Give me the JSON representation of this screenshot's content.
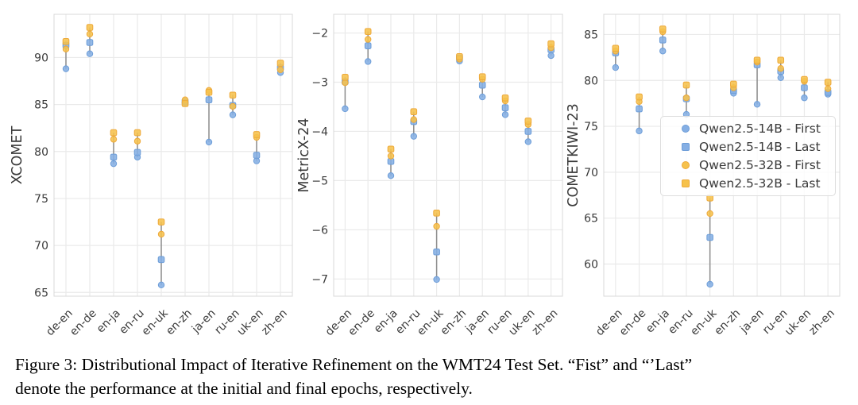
{
  "figure": {
    "caption_line1": "Figure 3: Distributional Impact of Iterative Refinement on the WMT24 Test Set. “Fist” and “’Last”",
    "caption_line2": "denote the performance at the initial and final epochs, respectively."
  },
  "legend": {
    "items": [
      {
        "label": "Qwen2.5-14B - First",
        "marker": "circle",
        "color": "blue"
      },
      {
        "label": "Qwen2.5-14B - Last",
        "marker": "square",
        "color": "blue"
      },
      {
        "label": "Qwen2.5-32B - First",
        "marker": "circle",
        "color": "orange"
      },
      {
        "label": "Qwen2.5-32B - Last",
        "marker": "square",
        "color": "orange"
      }
    ]
  },
  "colors": {
    "blue_fill": "#85afe4",
    "blue_edge": "#6d9dd8",
    "orange_fill": "#f6c24c",
    "orange_edge": "#eda93a",
    "range_line": "#8c8c8c",
    "grid": "#eaeaea",
    "spine": "#d8d8d8",
    "text": "#3a3a3a"
  },
  "chart_data": [
    {
      "type": "scatter",
      "ylabel": "XCOMET",
      "categories": [
        "de-en",
        "en-de",
        "en-ja",
        "en-ru",
        "en-uk",
        "en-zh",
        "ja-en",
        "ru-en",
        "uk-en",
        "zh-en"
      ],
      "ylim": [
        64.6,
        94.6
      ],
      "yticks": [
        65,
        70,
        75,
        80,
        85,
        90
      ],
      "ytick_labels": [
        "65",
        "70",
        "75",
        "80",
        "85",
        "90"
      ],
      "grid": true,
      "series": [
        {
          "name": "Qwen2.5-14B - First",
          "marker": "circle",
          "color": "blue",
          "values": [
            88.8,
            90.4,
            78.7,
            79.4,
            65.8,
            85.2,
            81.0,
            83.9,
            79.0,
            88.4
          ]
        },
        {
          "name": "Qwen2.5-14B - Last",
          "marker": "square",
          "color": "blue",
          "values": [
            91.3,
            91.6,
            79.4,
            79.9,
            68.5,
            85.3,
            85.5,
            84.9,
            79.6,
            88.9
          ]
        },
        {
          "name": "Qwen2.5-32B - First",
          "marker": "circle",
          "color": "orange",
          "values": [
            90.9,
            92.5,
            81.3,
            81.1,
            71.2,
            85.5,
            86.5,
            84.8,
            81.5,
            88.7
          ]
        },
        {
          "name": "Qwen2.5-32B - Last",
          "marker": "square",
          "color": "orange",
          "values": [
            91.7,
            93.2,
            82.0,
            82.0,
            72.5,
            85.1,
            86.3,
            86.0,
            81.8,
            89.4
          ]
        }
      ]
    },
    {
      "type": "scatter",
      "ylabel": "MetricX-24",
      "categories": [
        "de-en",
        "en-de",
        "en-ja",
        "en-ru",
        "en-uk",
        "en-zh",
        "ja-en",
        "ru-en",
        "uk-en",
        "zh-en"
      ],
      "ylim": [
        -7.35,
        -1.62
      ],
      "yticks": [
        -2,
        -3,
        -4,
        -5,
        -6,
        -7
      ],
      "ytick_labels": [
        "−2",
        "−3",
        "−4",
        "−5",
        "−6",
        "−7"
      ],
      "grid": true,
      "series": [
        {
          "name": "Qwen2.5-14B - First",
          "marker": "circle",
          "color": "blue",
          "values": [
            -3.54,
            -2.58,
            -4.9,
            -4.1,
            -7.01,
            -2.57,
            -3.3,
            -3.66,
            -4.21,
            -2.46
          ]
        },
        {
          "name": "Qwen2.5-14B - Last",
          "marker": "square",
          "color": "blue",
          "values": [
            -2.99,
            -2.26,
            -4.61,
            -3.8,
            -6.45,
            -2.51,
            -3.06,
            -3.52,
            -4.0,
            -2.34
          ]
        },
        {
          "name": "Qwen2.5-32B - First",
          "marker": "circle",
          "color": "orange",
          "values": [
            -3.01,
            -2.13,
            -4.5,
            -3.76,
            -5.93,
            -2.53,
            -2.94,
            -3.38,
            -3.86,
            -2.3
          ]
        },
        {
          "name": "Qwen2.5-32B - Last",
          "marker": "square",
          "color": "orange",
          "values": [
            -2.9,
            -1.97,
            -4.36,
            -3.6,
            -5.66,
            -2.48,
            -2.89,
            -3.32,
            -3.79,
            -2.22
          ]
        }
      ]
    },
    {
      "type": "scatter",
      "ylabel": "COMETKIWI-23",
      "categories": [
        "de-en",
        "en-de",
        "en-ja",
        "en-ru",
        "en-uk",
        "en-zh",
        "ja-en",
        "ru-en",
        "uk-en",
        "zh-en"
      ],
      "ylim": [
        56.5,
        87.2
      ],
      "yticks": [
        60,
        65,
        70,
        75,
        80,
        85
      ],
      "ytick_labels": [
        "60",
        "65",
        "70",
        "75",
        "80",
        "85"
      ],
      "grid": true,
      "legend_inside": true,
      "series": [
        {
          "name": "Qwen2.5-14B - First",
          "marker": "circle",
          "color": "blue",
          "values": [
            81.4,
            74.5,
            83.2,
            76.3,
            57.8,
            78.6,
            77.4,
            80.3,
            78.1,
            78.5
          ]
        },
        {
          "name": "Qwen2.5-14B - Last",
          "marker": "square",
          "color": "blue",
          "values": [
            83.0,
            76.9,
            84.4,
            78.0,
            62.9,
            78.9,
            81.7,
            81.0,
            79.2,
            78.7
          ]
        },
        {
          "name": "Qwen2.5-32B - First",
          "marker": "circle",
          "color": "orange",
          "values": [
            83.2,
            77.7,
            85.3,
            78.1,
            65.5,
            79.2,
            82.0,
            81.3,
            79.9,
            79.1
          ]
        },
        {
          "name": "Qwen2.5-32B - Last",
          "marker": "square",
          "color": "orange",
          "values": [
            83.5,
            78.2,
            85.6,
            79.5,
            67.2,
            79.6,
            82.2,
            82.2,
            80.1,
            79.8
          ]
        }
      ]
    }
  ]
}
